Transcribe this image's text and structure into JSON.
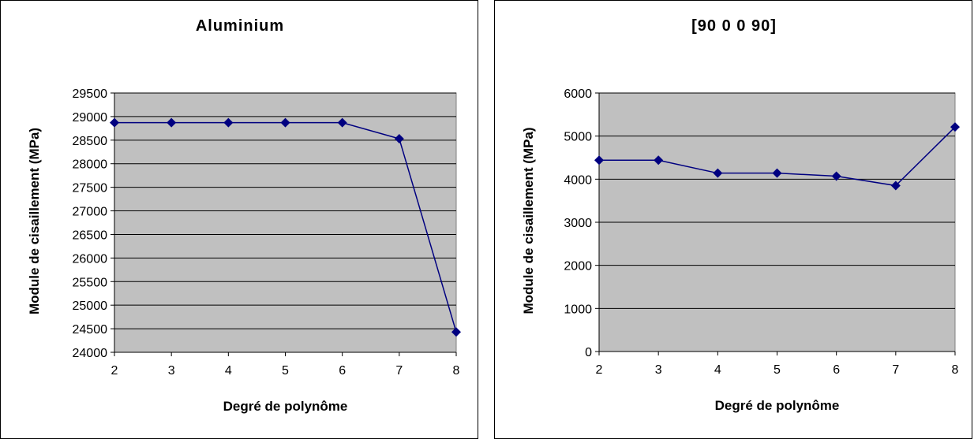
{
  "chart_data": [
    {
      "type": "line",
      "title": "Aluminium",
      "xlabel": "Degré de polynôme",
      "ylabel": "Module de cisaillement (MPa)",
      "x": [
        2,
        3,
        4,
        5,
        6,
        7,
        8
      ],
      "series": [
        {
          "values": [
            28870,
            28870,
            28870,
            28870,
            28870,
            28530,
            24430
          ]
        }
      ],
      "ylim": [
        24000,
        29500
      ],
      "yticks": [
        24000,
        24500,
        25000,
        25500,
        26000,
        26500,
        27000,
        27500,
        28000,
        28500,
        29000,
        29500
      ],
      "grid": true,
      "legend": "none",
      "colors": {
        "plot_bg": "#c0c0c0",
        "line": "#000080",
        "marker": "#000080",
        "grid": "#000000"
      }
    },
    {
      "type": "line",
      "title": "[90 0 0 90]",
      "xlabel": "Degré de polynôme",
      "ylabel": "Module de cisaillement (MPa)",
      "x": [
        2,
        3,
        4,
        5,
        6,
        7,
        8
      ],
      "series": [
        {
          "values": [
            4440,
            4440,
            4140,
            4140,
            4070,
            3850,
            5210
          ]
        }
      ],
      "ylim": [
        0,
        6000
      ],
      "yticks": [
        0,
        1000,
        2000,
        3000,
        4000,
        5000,
        6000
      ],
      "grid": true,
      "legend": "none",
      "colors": {
        "plot_bg": "#c0c0c0",
        "line": "#000080",
        "marker": "#000080",
        "grid": "#000000"
      }
    }
  ]
}
